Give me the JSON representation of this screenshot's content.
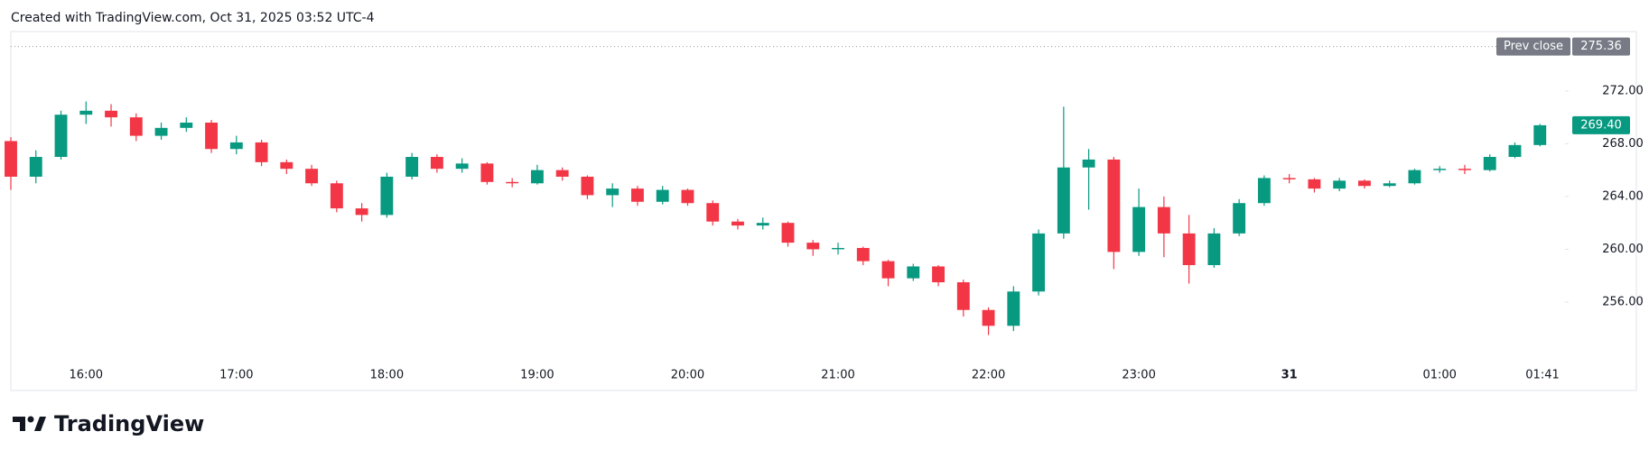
{
  "header": "Created with TradingView.com, Oct 31, 2025 03:52 UTC-4",
  "logo": "TradingView",
  "chart_data": {
    "type": "candlestick",
    "x": [
      "15:30",
      "15:40",
      "15:50",
      "16:00",
      "16:10",
      "16:20",
      "16:30",
      "16:40",
      "16:50",
      "17:00",
      "17:10",
      "17:20",
      "17:30",
      "17:40",
      "17:50",
      "18:00",
      "18:10",
      "18:20",
      "18:30",
      "18:40",
      "18:50",
      "19:00",
      "19:10",
      "19:20",
      "19:30",
      "19:40",
      "19:50",
      "20:00",
      "20:10",
      "20:20",
      "20:30",
      "20:40",
      "20:50",
      "21:00",
      "21:10",
      "21:20",
      "21:30",
      "21:40",
      "21:50",
      "22:00",
      "22:10",
      "22:20",
      "22:30",
      "22:40",
      "22:50",
      "23:00",
      "23:10",
      "23:20",
      "23:30",
      "23:40",
      "23:50",
      "00:00",
      "00:10",
      "00:20",
      "00:30",
      "00:40",
      "00:50",
      "01:00",
      "01:10",
      "01:20",
      "01:30",
      "01:40"
    ],
    "open": [
      268.2,
      265.5,
      267,
      270.2,
      270.5,
      270,
      268.6,
      269.2,
      269.6,
      267.6,
      268.1,
      266.6,
      266.1,
      265,
      263.1,
      262.6,
      265.5,
      267,
      266.1,
      266.5,
      265.1,
      265,
      266,
      265.5,
      264.1,
      264.6,
      263.6,
      264.5,
      263.5,
      262.1,
      261.8,
      262,
      260.5,
      260,
      260.1,
      259.1,
      257.8,
      258.7,
      257.5,
      255.4,
      254.2,
      256.8,
      261.2,
      266.2,
      266.8,
      259.8,
      263.2,
      261.2,
      258.8,
      261.2,
      263.5,
      265.4,
      265.3,
      264.6,
      265.2,
      264.8,
      265,
      266,
      266.1,
      266,
      267,
      267.9
    ],
    "high": [
      268.5,
      267.5,
      270.5,
      271.2,
      271,
      270.3,
      269.6,
      270,
      269.8,
      268.6,
      268.3,
      266.8,
      266.4,
      265.2,
      263.5,
      265.8,
      267.3,
      267.2,
      266.9,
      266.6,
      265.4,
      266.4,
      266.2,
      265.6,
      265,
      264.8,
      264.8,
      264.6,
      263.7,
      262.3,
      262.4,
      262.1,
      260.7,
      260.5,
      260.2,
      259.2,
      258.9,
      258.8,
      257.7,
      255.6,
      257.2,
      261.5,
      270.8,
      267.6,
      267,
      264.6,
      264,
      262.6,
      261.6,
      263.8,
      265.6,
      265.7,
      265.4,
      265.4,
      265.3,
      265.2,
      266.1,
      266.3,
      266.4,
      267.2,
      268.1,
      269.5
    ],
    "low": [
      264.5,
      265,
      266.8,
      269.5,
      269.3,
      268.2,
      268.3,
      268.9,
      267.3,
      267.2,
      266.3,
      265.7,
      264.8,
      262.8,
      262.1,
      262.4,
      265.3,
      265.8,
      265.8,
      264.9,
      264.7,
      264.9,
      265.2,
      263.8,
      263.2,
      263.3,
      263.4,
      263.3,
      261.8,
      261.5,
      261.5,
      260.2,
      259.5,
      259.6,
      258.8,
      257.2,
      257.6,
      257.2,
      254.9,
      253.5,
      253.8,
      256.5,
      260.8,
      263,
      258.5,
      259.5,
      259.4,
      257.4,
      258.6,
      261,
      263.3,
      265,
      264.3,
      264.4,
      264.6,
      264.7,
      264.9,
      265.8,
      265.7,
      265.9,
      266.9,
      267.8
    ],
    "close": [
      265.5,
      267,
      270.2,
      270.5,
      270,
      268.6,
      269.2,
      269.6,
      267.6,
      268.1,
      266.6,
      266.1,
      265,
      263.1,
      262.6,
      265.5,
      267,
      266.1,
      266.5,
      265.1,
      265,
      266,
      265.5,
      264.1,
      264.6,
      263.6,
      264.5,
      263.5,
      262.1,
      261.8,
      262,
      260.5,
      260,
      260.1,
      259.1,
      257.8,
      258.7,
      257.5,
      255.4,
      254.2,
      256.8,
      261.2,
      266.2,
      266.8,
      259.8,
      263.2,
      261.2,
      258.8,
      261.2,
      263.5,
      265.4,
      265.3,
      264.6,
      265.2,
      264.8,
      265,
      266,
      266.1,
      266,
      267,
      267.9,
      269.4
    ],
    "up_color": "#089981",
    "down_color": "#f23645",
    "xlim": [
      "15:30",
      "01:50"
    ],
    "xticks": [
      "16:00",
      "17:00",
      "18:00",
      "19:00",
      "20:00",
      "21:00",
      "22:00",
      "23:00",
      {
        "value": "00:00",
        "label": "31"
      },
      "01:00",
      "01:41"
    ],
    "ylim": [
      249.3,
      276.5
    ],
    "yticks": [
      {
        "value": 256,
        "label": "256.00"
      },
      {
        "value": 260,
        "label": "260.00"
      },
      {
        "value": 264,
        "label": "264.00"
      },
      {
        "value": 268,
        "label": "268.00"
      },
      {
        "value": 272,
        "label": "272.00"
      }
    ],
    "grid": false,
    "prev_close_label": "Prev close",
    "prev_close": {
      "value": 275.36,
      "label": "275.36"
    },
    "last_price": {
      "value": 269.4,
      "label": "269.40"
    }
  }
}
